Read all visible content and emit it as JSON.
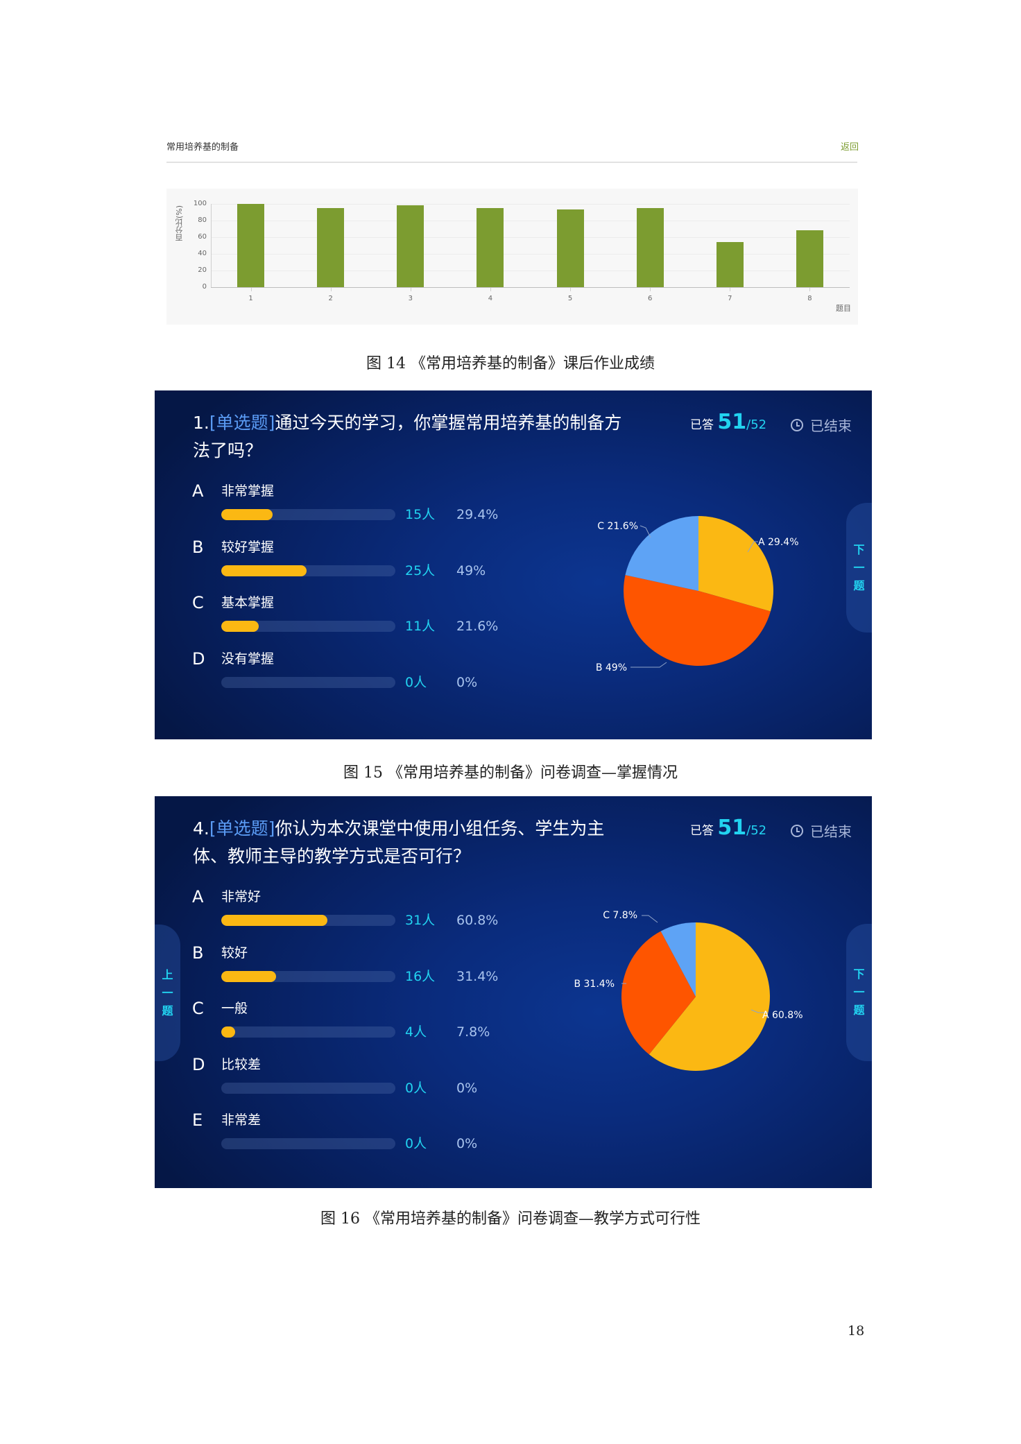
{
  "figure14": {
    "header": {
      "title": "常用培养基的制备",
      "back_label": "返回"
    },
    "caption": "图 14 《常用培养基的制备》课后作业成绩"
  },
  "figure15": {
    "question": {
      "number": "1.",
      "type": "[单选题]",
      "text": "通过今天的学习，你掌握常用培养基的制备方法了吗？"
    },
    "status": {
      "answered_label": "已答",
      "answered": "51",
      "total": "/52",
      "ended_label": "已结束"
    },
    "options": [
      {
        "letter": "A",
        "label": "非常掌握",
        "count": "15人",
        "percent": "29.4%",
        "value": 29.4
      },
      {
        "letter": "B",
        "label": "较好掌握",
        "count": "25人",
        "percent": "49%",
        "value": 49
      },
      {
        "letter": "C",
        "label": "基本掌握",
        "count": "11人",
        "percent": "21.6%",
        "value": 21.6
      },
      {
        "letter": "D",
        "label": "没有掌握",
        "count": "0人",
        "percent": "0%",
        "value": 0
      }
    ],
    "pie_labels": {
      "A": "A 29.4%",
      "B": "B 49%",
      "C": "C 21.6%"
    },
    "next_label": [
      "下",
      "一",
      "题"
    ],
    "caption": "图 15 《常用培养基的制备》问卷调查—掌握情况"
  },
  "figure16": {
    "question": {
      "number": "4.",
      "type": "[单选题]",
      "text": "你认为本次课堂中使用小组任务、学生为主体、教师主导的教学方式是否可行？"
    },
    "status": {
      "answered_label": "已答",
      "answered": "51",
      "total": "/52",
      "ended_label": "已结束"
    },
    "options": [
      {
        "letter": "A",
        "label": "非常好",
        "count": "31人",
        "percent": "60.8%",
        "value": 60.8
      },
      {
        "letter": "B",
        "label": "较好",
        "count": "16人",
        "percent": "31.4%",
        "value": 31.4
      },
      {
        "letter": "C",
        "label": "一般",
        "count": "4人",
        "percent": "7.8%",
        "value": 7.8
      },
      {
        "letter": "D",
        "label": "比较差",
        "count": "0人",
        "percent": "0%",
        "value": 0
      },
      {
        "letter": "E",
        "label": "非常差",
        "count": "0人",
        "percent": "0%",
        "value": 0
      }
    ],
    "pie_labels": {
      "A": "A 60.8%",
      "B": "B 31.4%",
      "C": "C 7.8%"
    },
    "prev_label": [
      "上",
      "一",
      "题"
    ],
    "next_label": [
      "下",
      "一",
      "题"
    ],
    "caption": "图 16 《常用培养基的制备》问卷调查—教学方式可行性"
  },
  "colors": {
    "bar_green": "#7c9c30",
    "option_fill": "#fbb813",
    "pie_a": "#fbb813",
    "pie_b": "#fe5500",
    "pie_c": "#5ea3f5",
    "accent_cyan": "#22d3f0"
  },
  "page_number": "18",
  "chart_data": [
    {
      "type": "bar",
      "title": "常用培养基的制备",
      "xlabel": "题目",
      "ylabel": "百分比(%)",
      "categories": [
        "1",
        "2",
        "3",
        "4",
        "5",
        "6",
        "7",
        "8"
      ],
      "values": [
        100,
        95,
        98,
        95,
        93,
        95,
        54,
        68
      ],
      "ylim": [
        0,
        100
      ],
      "yticks": [
        "0",
        "20",
        "40",
        "60",
        "80",
        "100"
      ],
      "grid": true,
      "legend": null
    },
    {
      "type": "pie",
      "title": "通过今天的学习，你掌握常用培养基的制备方法了吗？",
      "categories": [
        "A",
        "B",
        "C",
        "D"
      ],
      "labels": [
        "非常掌握",
        "较好掌握",
        "基本掌握",
        "没有掌握"
      ],
      "values": [
        29.4,
        49,
        21.6,
        0
      ],
      "counts": [
        15,
        25,
        11,
        0
      ]
    },
    {
      "type": "pie",
      "title": "你认为本次课堂中使用小组任务、学生为主体、教师主导的教学方式是否可行？",
      "categories": [
        "A",
        "B",
        "C",
        "D",
        "E"
      ],
      "labels": [
        "非常好",
        "较好",
        "一般",
        "比较差",
        "非常差"
      ],
      "values": [
        60.8,
        31.4,
        7.8,
        0,
        0
      ],
      "counts": [
        31,
        16,
        4,
        0,
        0
      ]
    }
  ]
}
